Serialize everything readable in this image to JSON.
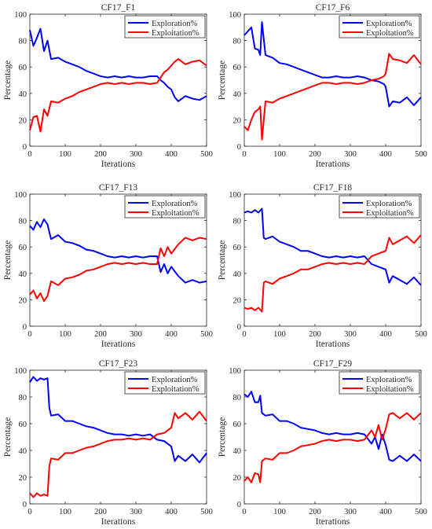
{
  "chart_data": [
    {
      "type": "line",
      "title": "CF17_F1",
      "xlabel": "Iterations",
      "ylabel": "Percentage",
      "xlim": [
        0,
        500
      ],
      "ylim": [
        0,
        100
      ],
      "xticks": [
        0,
        100,
        200,
        300,
        400,
        500
      ],
      "yticks": [
        0,
        20,
        40,
        60,
        80,
        100
      ],
      "legend": "top-right",
      "grid": false,
      "series": [
        {
          "name": "Exploration%",
          "color": "#0000ff",
          "x": [
            0,
            10,
            20,
            30,
            40,
            50,
            60,
            80,
            100,
            120,
            140,
            160,
            180,
            200,
            220,
            240,
            260,
            280,
            300,
            320,
            340,
            360,
            370,
            380,
            390,
            400,
            410,
            420,
            440,
            460,
            480,
            500
          ],
          "values": [
            88,
            76,
            82,
            89,
            72,
            80,
            66,
            67,
            64,
            62,
            60,
            57,
            55,
            53,
            52,
            53,
            52,
            53,
            52,
            52,
            53,
            53,
            50,
            48,
            45,
            43,
            37,
            34,
            38,
            36,
            35,
            38
          ]
        },
        {
          "name": "Exploitation%",
          "color": "#ff0000",
          "x": [
            0,
            10,
            20,
            30,
            40,
            50,
            60,
            80,
            100,
            120,
            140,
            160,
            180,
            200,
            220,
            240,
            260,
            280,
            300,
            320,
            340,
            360,
            370,
            380,
            390,
            400,
            410,
            420,
            440,
            460,
            480,
            500
          ],
          "values": [
            12,
            22,
            23,
            11,
            28,
            23,
            34,
            33,
            36,
            38,
            41,
            43,
            45,
            47,
            48,
            47,
            48,
            47,
            48,
            48,
            47,
            48,
            52,
            56,
            58,
            61,
            64,
            66,
            62,
            64,
            65,
            61
          ]
        }
      ]
    },
    {
      "type": "line",
      "title": "CF17_F6",
      "xlabel": "Iterations",
      "ylabel": "Percentage",
      "xlim": [
        0,
        500
      ],
      "ylim": [
        0,
        100
      ],
      "xticks": [
        0,
        100,
        200,
        300,
        400,
        500
      ],
      "yticks": [
        0,
        20,
        40,
        60,
        80,
        100
      ],
      "legend": "top-right",
      "grid": false,
      "series": [
        {
          "name": "Exploration%",
          "color": "#0000ff",
          "x": [
            0,
            10,
            20,
            30,
            40,
            45,
            50,
            60,
            80,
            100,
            120,
            140,
            160,
            180,
            200,
            220,
            240,
            260,
            280,
            300,
            320,
            340,
            360,
            380,
            395,
            400,
            410,
            420,
            440,
            460,
            480,
            500
          ],
          "values": [
            84,
            87,
            90,
            74,
            73,
            69,
            94,
            69,
            67,
            63,
            62,
            60,
            58,
            56,
            54,
            52,
            52,
            53,
            52,
            52,
            53,
            52,
            50,
            49,
            47,
            45,
            30,
            34,
            33,
            37,
            31,
            37
          ]
        },
        {
          "name": "Exploitation%",
          "color": "#ff0000",
          "x": [
            0,
            10,
            20,
            30,
            40,
            45,
            50,
            60,
            80,
            100,
            120,
            140,
            160,
            180,
            200,
            220,
            240,
            260,
            280,
            300,
            320,
            340,
            360,
            380,
            395,
            400,
            410,
            420,
            440,
            460,
            480,
            500
          ],
          "values": [
            15,
            12,
            20,
            26,
            28,
            30,
            5,
            34,
            33,
            36,
            38,
            40,
            42,
            44,
            46,
            48,
            48,
            47,
            48,
            48,
            47,
            48,
            50,
            51,
            53,
            55,
            70,
            66,
            65,
            63,
            69,
            62
          ]
        }
      ]
    },
    {
      "type": "line",
      "title": "CF17_F13",
      "xlabel": "Iterations",
      "ylabel": "Percentage",
      "xlim": [
        0,
        500
      ],
      "ylim": [
        0,
        100
      ],
      "xticks": [
        0,
        100,
        200,
        300,
        400,
        500
      ],
      "yticks": [
        0,
        20,
        40,
        60,
        80,
        100
      ],
      "legend": "top-right",
      "grid": false,
      "series": [
        {
          "name": "Exploration%",
          "color": "#0000ff",
          "x": [
            0,
            10,
            20,
            30,
            40,
            50,
            60,
            80,
            100,
            120,
            140,
            160,
            180,
            200,
            220,
            240,
            260,
            280,
            300,
            320,
            340,
            360,
            370,
            380,
            390,
            400,
            420,
            440,
            460,
            480,
            500
          ],
          "values": [
            76,
            73,
            79,
            75,
            81,
            77,
            66,
            69,
            64,
            63,
            61,
            58,
            57,
            55,
            53,
            52,
            53,
            52,
            53,
            52,
            53,
            53,
            41,
            47,
            40,
            45,
            38,
            33,
            35,
            33,
            34
          ]
        },
        {
          "name": "Exploitation%",
          "color": "#ff0000",
          "x": [
            0,
            10,
            20,
            30,
            40,
            50,
            60,
            80,
            100,
            120,
            140,
            160,
            180,
            200,
            220,
            240,
            260,
            280,
            300,
            320,
            340,
            360,
            370,
            380,
            390,
            400,
            420,
            440,
            460,
            480,
            500
          ],
          "values": [
            24,
            27,
            21,
            25,
            19,
            23,
            34,
            31,
            36,
            37,
            39,
            42,
            43,
            45,
            47,
            48,
            47,
            48,
            47,
            48,
            47,
            47,
            59,
            53,
            60,
            55,
            62,
            67,
            65,
            67,
            66
          ]
        }
      ]
    },
    {
      "type": "line",
      "title": "CF17_F18",
      "xlabel": "Iterations",
      "ylabel": "Percentage",
      "xlim": [
        0,
        500
      ],
      "ylim": [
        0,
        100
      ],
      "xticks": [
        0,
        100,
        200,
        300,
        400,
        500
      ],
      "yticks": [
        0,
        20,
        40,
        60,
        80,
        100
      ],
      "legend": "top-right",
      "grid": false,
      "series": [
        {
          "name": "Exploration%",
          "color": "#0000ff",
          "x": [
            0,
            10,
            20,
            30,
            40,
            50,
            55,
            60,
            80,
            100,
            120,
            140,
            160,
            180,
            200,
            220,
            240,
            260,
            280,
            300,
            320,
            340,
            360,
            380,
            400,
            410,
            420,
            440,
            460,
            480,
            500
          ],
          "values": [
            86,
            87,
            86,
            88,
            86,
            89,
            67,
            66,
            68,
            64,
            62,
            60,
            57,
            57,
            55,
            53,
            52,
            53,
            52,
            53,
            52,
            53,
            47,
            45,
            43,
            33,
            38,
            35,
            32,
            37,
            31
          ]
        },
        {
          "name": "Exploitation%",
          "color": "#ff0000",
          "x": [
            0,
            10,
            20,
            30,
            40,
            50,
            55,
            60,
            80,
            100,
            120,
            140,
            160,
            180,
            200,
            220,
            240,
            260,
            280,
            300,
            320,
            340,
            360,
            380,
            400,
            410,
            420,
            440,
            460,
            480,
            500
          ],
          "values": [
            14,
            13,
            14,
            12,
            14,
            11,
            33,
            34,
            32,
            36,
            38,
            40,
            43,
            43,
            45,
            47,
            48,
            47,
            48,
            47,
            48,
            47,
            53,
            55,
            57,
            67,
            62,
            65,
            68,
            63,
            69
          ]
        }
      ]
    },
    {
      "type": "line",
      "title": "CF17_F23",
      "xlabel": "Iterations",
      "ylabel": "Percentage",
      "xlim": [
        0,
        500
      ],
      "ylim": [
        0,
        100
      ],
      "xticks": [
        0,
        100,
        200,
        300,
        400,
        500
      ],
      "yticks": [
        0,
        20,
        40,
        60,
        80,
        100
      ],
      "legend": "top-right",
      "grid": false,
      "series": [
        {
          "name": "Exploration%",
          "color": "#0000ff",
          "x": [
            0,
            10,
            20,
            30,
            40,
            50,
            55,
            60,
            80,
            100,
            120,
            140,
            160,
            180,
            200,
            220,
            240,
            260,
            280,
            300,
            320,
            340,
            360,
            380,
            400,
            410,
            420,
            440,
            460,
            480,
            500
          ],
          "values": [
            91,
            95,
            92,
            94,
            93,
            94,
            72,
            66,
            67,
            62,
            62,
            60,
            58,
            57,
            55,
            53,
            52,
            52,
            51,
            52,
            51,
            52,
            48,
            47,
            43,
            32,
            36,
            32,
            37,
            31,
            38
          ]
        },
        {
          "name": "Exploitation%",
          "color": "#ff0000",
          "x": [
            0,
            10,
            20,
            30,
            40,
            50,
            55,
            60,
            80,
            100,
            120,
            140,
            160,
            180,
            200,
            220,
            240,
            260,
            280,
            300,
            320,
            340,
            360,
            380,
            400,
            410,
            420,
            440,
            460,
            480,
            500
          ],
          "values": [
            8,
            5,
            8,
            6,
            7,
            6,
            28,
            34,
            33,
            38,
            38,
            40,
            42,
            43,
            45,
            47,
            48,
            48,
            49,
            48,
            49,
            48,
            52,
            53,
            57,
            68,
            64,
            68,
            63,
            69,
            62
          ]
        }
      ]
    },
    {
      "type": "line",
      "title": "CF17_F29",
      "xlabel": "Iterations",
      "ylabel": "Percentage",
      "xlim": [
        0,
        500
      ],
      "ylim": [
        0,
        100
      ],
      "xticks": [
        0,
        100,
        200,
        300,
        400,
        500
      ],
      "yticks": [
        0,
        20,
        40,
        60,
        80,
        100
      ],
      "legend": "top-right",
      "grid": false,
      "series": [
        {
          "name": "Exploration%",
          "color": "#0000ff",
          "x": [
            0,
            10,
            20,
            30,
            40,
            45,
            50,
            60,
            80,
            100,
            120,
            140,
            160,
            180,
            200,
            220,
            240,
            260,
            280,
            300,
            320,
            340,
            360,
            370,
            380,
            390,
            400,
            410,
            420,
            440,
            460,
            480,
            500
          ],
          "values": [
            82,
            80,
            84,
            76,
            76,
            81,
            68,
            66,
            67,
            62,
            62,
            60,
            57,
            56,
            55,
            53,
            52,
            53,
            52,
            52,
            53,
            52,
            45,
            50,
            41,
            52,
            44,
            33,
            32,
            36,
            32,
            37,
            32
          ]
        },
        {
          "name": "Exploitation%",
          "color": "#ff0000",
          "x": [
            0,
            10,
            20,
            30,
            40,
            45,
            50,
            60,
            80,
            100,
            120,
            140,
            160,
            180,
            200,
            220,
            240,
            260,
            280,
            300,
            320,
            340,
            360,
            370,
            380,
            390,
            400,
            410,
            420,
            440,
            460,
            480,
            500
          ],
          "values": [
            17,
            20,
            16,
            23,
            22,
            16,
            32,
            34,
            33,
            38,
            38,
            40,
            43,
            44,
            45,
            47,
            48,
            47,
            48,
            48,
            47,
            48,
            55,
            50,
            59,
            48,
            56,
            67,
            68,
            64,
            68,
            63,
            68
          ]
        }
      ]
    }
  ]
}
